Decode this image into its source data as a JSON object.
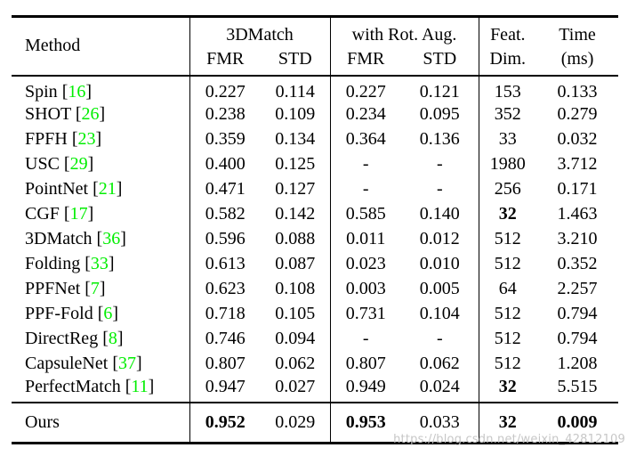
{
  "colors": {
    "text": "#000000",
    "background": "#ffffff",
    "citation_green": "#00ee00",
    "watermark_gray": "#c7c7c7"
  },
  "watermark": "https://blog.csdn.net/weixin_42812109",
  "table": {
    "punct": {
      "open": "[",
      "close": "]"
    },
    "header": {
      "method": "Method",
      "group_3dmatch": "3DMatch",
      "group_rot_aug": "with Rot. Aug.",
      "fmr_1": "FMR",
      "std_1": "STD",
      "fmr_2": "FMR",
      "std_2": "STD",
      "feat_line1": "Feat.",
      "feat_line2": "Dim.",
      "time_line1": "Time",
      "time_line2": "(ms)"
    },
    "rows": [
      {
        "method": "Spin",
        "cite": "16",
        "fmr1": "0.227",
        "std1": "0.114",
        "fmr2": "0.227",
        "std2": "0.121",
        "feat": "153",
        "time": "0.133"
      },
      {
        "method": "SHOT",
        "cite": "26",
        "fmr1": "0.238",
        "std1": "0.109",
        "fmr2": "0.234",
        "std2": "0.095",
        "feat": "352",
        "time": "0.279"
      },
      {
        "method": "FPFH",
        "cite": "23",
        "fmr1": "0.359",
        "std1": "0.134",
        "fmr2": "0.364",
        "std2": "0.136",
        "feat": "33",
        "time": "0.032"
      },
      {
        "method": "USC",
        "cite": "29",
        "fmr1": "0.400",
        "std1": "0.125",
        "fmr2": "-",
        "std2": "-",
        "feat": "1980",
        "time": "3.712"
      },
      {
        "method": "PointNet",
        "cite": "21",
        "fmr1": "0.471",
        "std1": "0.127",
        "fmr2": "-",
        "std2": "-",
        "feat": "256",
        "time": "0.171"
      },
      {
        "method": "CGF",
        "cite": "17",
        "fmr1": "0.582",
        "std1": "0.142",
        "fmr2": "0.585",
        "std2": "0.140",
        "feat": "32",
        "time": "1.463"
      },
      {
        "method": "3DMatch",
        "cite": "36",
        "fmr1": "0.596",
        "std1": "0.088",
        "fmr2": "0.011",
        "std2": "0.012",
        "feat": "512",
        "time": "3.210"
      },
      {
        "method": "Folding",
        "cite": "33",
        "fmr1": "0.613",
        "std1": "0.087",
        "fmr2": "0.023",
        "std2": "0.010",
        "feat": "512",
        "time": "0.352"
      },
      {
        "method": "PPFNet",
        "cite": "7",
        "fmr1": "0.623",
        "std1": "0.108",
        "fmr2": "0.003",
        "std2": "0.005",
        "feat": "64",
        "time": "2.257"
      },
      {
        "method": "PPF-Fold",
        "cite": "6",
        "fmr1": "0.718",
        "std1": "0.105",
        "fmr2": "0.731",
        "std2": "0.104",
        "feat": "512",
        "time": "0.794"
      },
      {
        "method": "DirectReg",
        "cite": "8",
        "fmr1": "0.746",
        "std1": "0.094",
        "fmr2": "-",
        "std2": "-",
        "feat": "512",
        "time": "0.794"
      },
      {
        "method": "CapsuleNet",
        "cite": "37",
        "fmr1": "0.807",
        "std1": "0.062",
        "fmr2": "0.807",
        "std2": "0.062",
        "feat": "512",
        "time": "1.208"
      },
      {
        "method": "PerfectMatch",
        "cite": "11",
        "fmr1": "0.947",
        "std1": "0.027",
        "fmr2": "0.949",
        "std2": "0.024",
        "feat": "32",
        "time": "5.515"
      }
    ],
    "ours_row": {
      "method": "Ours",
      "fmr1": "0.952",
      "std1": "0.029",
      "fmr2": "0.953",
      "std2": "0.033",
      "feat": "32",
      "time": "0.009"
    }
  }
}
